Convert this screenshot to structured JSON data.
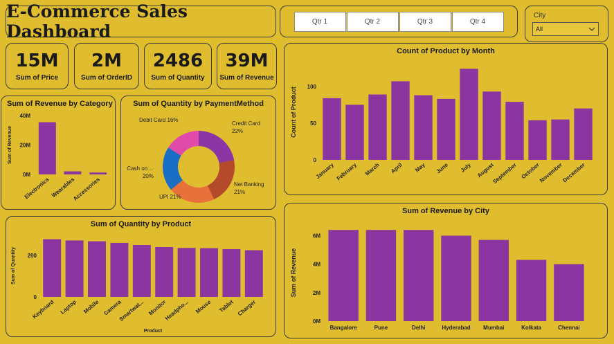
{
  "header": {
    "title": "E-Commerce Sales Dashboard"
  },
  "quarter_slicer": {
    "buttons": [
      "Qtr 1",
      "Qtr 2",
      "Qtr 3",
      "Qtr 4"
    ]
  },
  "city_filter": {
    "label": "City",
    "selected": "All"
  },
  "kpis": [
    {
      "value": "15M",
      "label": "Sum of Price"
    },
    {
      "value": "2M",
      "label": "Sum of OrderID"
    },
    {
      "value": "2486",
      "label": "Sum of Quantity"
    },
    {
      "value": "39M",
      "label": "Sum of Revenue"
    }
  ],
  "colors": {
    "background": "#e0bd2e",
    "bar": "#8b35a0"
  },
  "chart_data": [
    {
      "id": "revenue-by-category",
      "type": "bar",
      "title": "Sum of Revenue by Category",
      "xlabel": "",
      "ylabel": "Sum of Revenue",
      "categories": [
        "Electronics",
        "Wearables",
        "Accessories"
      ],
      "values": [
        35500000,
        2100000,
        1300000
      ],
      "ylim": [
        0,
        40000000
      ],
      "yticks": [
        {
          "v": 0,
          "label": "0M"
        },
        {
          "v": 20000000,
          "label": "20M"
        },
        {
          "v": 40000000,
          "label": "40M"
        }
      ]
    },
    {
      "id": "quantity-by-payment",
      "type": "pie",
      "title": "Sum of Quantity by PaymentMethod",
      "slices": [
        {
          "label": "Credit Card",
          "pct": "22%",
          "value": 22,
          "color": "#8a35a3"
        },
        {
          "label": "Net Banking",
          "pct": "21%",
          "value": 21,
          "color": "#b34a2b"
        },
        {
          "label": "UPI",
          "pct": "21%",
          "value": 21,
          "color": "#e8703a"
        },
        {
          "label": "Cash on ...",
          "pct": "20%",
          "value": 20,
          "color": "#1a6fc4"
        },
        {
          "label": "Debit Card",
          "pct": "16%",
          "value": 16,
          "color": "#e04aa8"
        }
      ]
    },
    {
      "id": "product-count-by-month",
      "type": "bar",
      "title": "Count of Product by Month",
      "xlabel": "",
      "ylabel": "Count of Product",
      "categories": [
        "January",
        "February",
        "March",
        "April",
        "May",
        "June",
        "July",
        "August",
        "September",
        "October",
        "November",
        "December"
      ],
      "values": [
        84,
        75,
        89,
        107,
        88,
        83,
        124,
        93,
        79,
        54,
        55,
        70
      ],
      "ylim": [
        0,
        130
      ],
      "yticks": [
        {
          "v": 0,
          "label": "0"
        },
        {
          "v": 50,
          "label": "50"
        },
        {
          "v": 100,
          "label": "100"
        }
      ]
    },
    {
      "id": "quantity-by-product",
      "type": "bar",
      "title": "Sum of Quantity by Product",
      "xlabel": "Product",
      "ylabel": "Sum of Quantity",
      "categories": [
        "Keyboard",
        "Laptop",
        "Mobile",
        "Camera",
        "Smartwat...",
        "Monitor",
        "Headpho...",
        "Mouse",
        "Tablet",
        "Charger"
      ],
      "values": [
        278,
        272,
        268,
        260,
        250,
        240,
        236,
        235,
        230,
        225
      ],
      "ylim": [
        0,
        300
      ],
      "yticks": [
        {
          "v": 0,
          "label": "0"
        },
        {
          "v": 200,
          "label": "200"
        }
      ]
    },
    {
      "id": "revenue-by-city",
      "type": "bar",
      "title": "Sum of Revenue by City",
      "xlabel": "",
      "ylabel": "Sum of Revenue",
      "categories": [
        "Bangalore",
        "Pune",
        "Delhi",
        "Hyderabad",
        "Mumbai",
        "Kolkata",
        "Chennai"
      ],
      "values": [
        6400000,
        6400000,
        6400000,
        6000000,
        5700000,
        4300000,
        4000000
      ],
      "ylim": [
        0,
        6800000
      ],
      "yticks": [
        {
          "v": 0,
          "label": "0M"
        },
        {
          "v": 2000000,
          "label": "2M"
        },
        {
          "v": 4000000,
          "label": "4M"
        },
        {
          "v": 6000000,
          "label": "6M"
        }
      ]
    }
  ]
}
